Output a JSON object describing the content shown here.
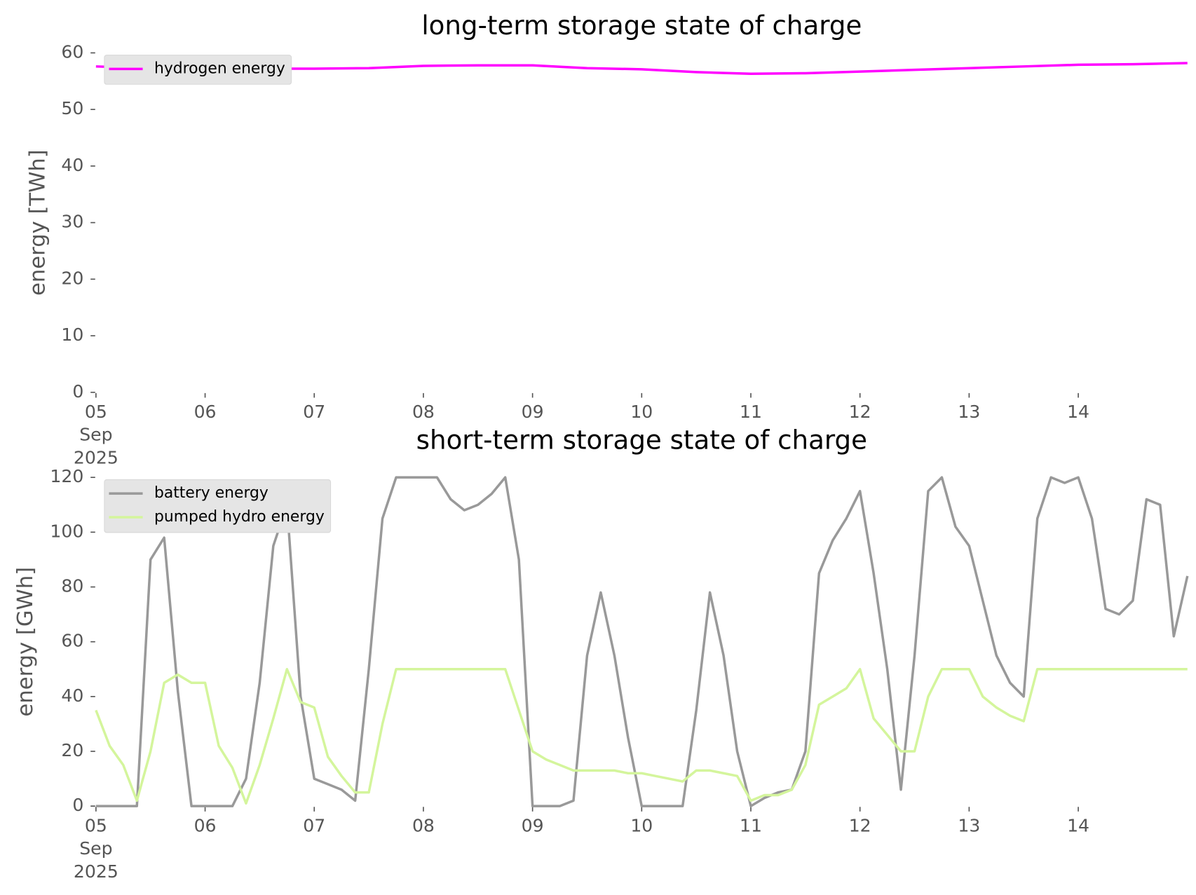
{
  "chart_data": [
    {
      "type": "line",
      "title": "long-term storage state of charge",
      "ylabel": "energy [TWh]",
      "x": [
        "2025-09-05 00:00",
        "2025-09-05 12:00",
        "2025-09-06 00:00",
        "2025-09-06 12:00",
        "2025-09-07 00:00",
        "2025-09-07 12:00",
        "2025-09-08 00:00",
        "2025-09-08 12:00",
        "2025-09-09 00:00",
        "2025-09-09 12:00",
        "2025-09-10 00:00",
        "2025-09-10 12:00",
        "2025-09-11 00:00",
        "2025-09-11 12:00",
        "2025-09-12 00:00",
        "2025-09-12 12:00",
        "2025-09-13 00:00",
        "2025-09-13 12:00",
        "2025-09-14 00:00",
        "2025-09-14 12:00",
        "2025-09-15 00:00"
      ],
      "series": [
        {
          "name": "hydrogen energy",
          "color": "#ff00ff",
          "values": [
            57.6,
            57.3,
            57.2,
            57.2,
            57.2,
            57.3,
            57.7,
            57.8,
            57.8,
            57.3,
            57.1,
            56.6,
            56.3,
            56.4,
            56.7,
            57.0,
            57.3,
            57.6,
            57.9,
            58.0,
            58.2
          ]
        }
      ],
      "xlim": [
        "2025-09-05 00:00",
        "2025-09-15 00:00"
      ],
      "xticks": [
        {
          "value": "2025-09-05 00:00",
          "label": "05\nSep\n2025"
        },
        {
          "value": "2025-09-06 00:00",
          "label": "06"
        },
        {
          "value": "2025-09-07 00:00",
          "label": "07"
        },
        {
          "value": "2025-09-08 00:00",
          "label": "08"
        },
        {
          "value": "2025-09-09 00:00",
          "label": "09"
        },
        {
          "value": "2025-09-10 00:00",
          "label": "10"
        },
        {
          "value": "2025-09-11 00:00",
          "label": "11"
        },
        {
          "value": "2025-09-12 00:00",
          "label": "12"
        },
        {
          "value": "2025-09-13 00:00",
          "label": "13"
        },
        {
          "value": "2025-09-14 00:00",
          "label": "14"
        }
      ],
      "ylim": [
        0,
        60
      ],
      "yticks": [
        0,
        10,
        20,
        30,
        40,
        50,
        60
      ],
      "legend": "upper left"
    },
    {
      "type": "line",
      "title": "short-term storage state of charge",
      "ylabel": "energy [GWh]",
      "x": [
        "2025-09-05 00:00",
        "2025-09-05 03:00",
        "2025-09-05 06:00",
        "2025-09-05 09:00",
        "2025-09-05 12:00",
        "2025-09-05 15:00",
        "2025-09-05 18:00",
        "2025-09-05 21:00",
        "2025-09-06 00:00",
        "2025-09-06 03:00",
        "2025-09-06 06:00",
        "2025-09-06 09:00",
        "2025-09-06 12:00",
        "2025-09-06 15:00",
        "2025-09-06 18:00",
        "2025-09-06 21:00",
        "2025-09-07 00:00",
        "2025-09-07 03:00",
        "2025-09-07 06:00",
        "2025-09-07 09:00",
        "2025-09-07 12:00",
        "2025-09-07 15:00",
        "2025-09-07 18:00",
        "2025-09-07 21:00",
        "2025-09-08 00:00",
        "2025-09-08 03:00",
        "2025-09-08 06:00",
        "2025-09-08 09:00",
        "2025-09-08 12:00",
        "2025-09-08 15:00",
        "2025-09-08 18:00",
        "2025-09-08 21:00",
        "2025-09-09 00:00",
        "2025-09-09 03:00",
        "2025-09-09 06:00",
        "2025-09-09 09:00",
        "2025-09-09 12:00",
        "2025-09-09 15:00",
        "2025-09-09 18:00",
        "2025-09-09 21:00",
        "2025-09-10 00:00",
        "2025-09-10 03:00",
        "2025-09-10 06:00",
        "2025-09-10 09:00",
        "2025-09-10 12:00",
        "2025-09-10 15:00",
        "2025-09-10 18:00",
        "2025-09-10 21:00",
        "2025-09-11 00:00",
        "2025-09-11 03:00",
        "2025-09-11 06:00",
        "2025-09-11 09:00",
        "2025-09-11 12:00",
        "2025-09-11 15:00",
        "2025-09-11 18:00",
        "2025-09-11 21:00",
        "2025-09-12 00:00",
        "2025-09-12 03:00",
        "2025-09-12 06:00",
        "2025-09-12 09:00",
        "2025-09-12 12:00",
        "2025-09-12 15:00",
        "2025-09-12 18:00",
        "2025-09-12 21:00",
        "2025-09-13 00:00",
        "2025-09-13 03:00",
        "2025-09-13 06:00",
        "2025-09-13 09:00",
        "2025-09-13 12:00",
        "2025-09-13 15:00",
        "2025-09-13 18:00",
        "2025-09-13 21:00",
        "2025-09-14 00:00",
        "2025-09-14 03:00",
        "2025-09-14 06:00",
        "2025-09-14 09:00",
        "2025-09-14 12:00",
        "2025-09-14 15:00",
        "2025-09-14 18:00",
        "2025-09-14 21:00",
        "2025-09-15 00:00"
      ],
      "series": [
        {
          "name": "battery energy",
          "color": "#999999",
          "values": [
            0,
            0,
            0,
            0,
            90,
            98,
            42,
            0,
            0,
            0,
            0,
            10,
            45,
            95,
            110,
            40,
            10,
            8,
            6,
            2,
            50,
            105,
            120,
            120,
            120,
            120,
            112,
            108,
            110,
            114,
            120,
            90,
            0,
            0,
            0,
            2,
            55,
            78,
            55,
            25,
            0,
            0,
            0,
            0,
            35,
            78,
            55,
            20,
            0,
            3,
            5,
            6,
            20,
            85,
            97,
            105,
            115,
            85,
            50,
            6,
            55,
            115,
            120,
            102,
            95,
            75,
            55,
            45,
            40,
            105,
            120,
            118,
            120,
            105,
            72,
            70,
            75,
            112,
            110,
            62,
            84
          ]
        },
        {
          "name": "pumped hydro energy",
          "color": "#d4f59c",
          "values": [
            35,
            22,
            15,
            2,
            20,
            45,
            48,
            45,
            45,
            22,
            14,
            1,
            15,
            32,
            50,
            38,
            36,
            18,
            11,
            5,
            5,
            30,
            50,
            50,
            50,
            50,
            50,
            50,
            50,
            50,
            50,
            35,
            20,
            17,
            15,
            13,
            13,
            13,
            13,
            12,
            12,
            11,
            10,
            9,
            13,
            13,
            12,
            11,
            2,
            4,
            4,
            6,
            15,
            37,
            40,
            43,
            50,
            32,
            26,
            20,
            20,
            40,
            50,
            50,
            50,
            40,
            36,
            33,
            31,
            50,
            50,
            50,
            50,
            50,
            50,
            50,
            50,
            50,
            50,
            50,
            50
          ]
        }
      ],
      "xlim": [
        "2025-09-05 00:00",
        "2025-09-15 00:00"
      ],
      "xticks": [
        {
          "value": "2025-09-05 00:00",
          "label": "05\nSep\n2025"
        },
        {
          "value": "2025-09-06 00:00",
          "label": "06"
        },
        {
          "value": "2025-09-07 00:00",
          "label": "07"
        },
        {
          "value": "2025-09-08 00:00",
          "label": "08"
        },
        {
          "value": "2025-09-09 00:00",
          "label": "09"
        },
        {
          "value": "2025-09-10 00:00",
          "label": "10"
        },
        {
          "value": "2025-09-11 00:00",
          "label": "11"
        },
        {
          "value": "2025-09-12 00:00",
          "label": "12"
        },
        {
          "value": "2025-09-13 00:00",
          "label": "13"
        },
        {
          "value": "2025-09-14 00:00",
          "label": "14"
        }
      ],
      "ylim": [
        0,
        120
      ],
      "yticks": [
        0,
        20,
        40,
        60,
        80,
        100,
        120
      ],
      "legend": "upper left"
    }
  ]
}
